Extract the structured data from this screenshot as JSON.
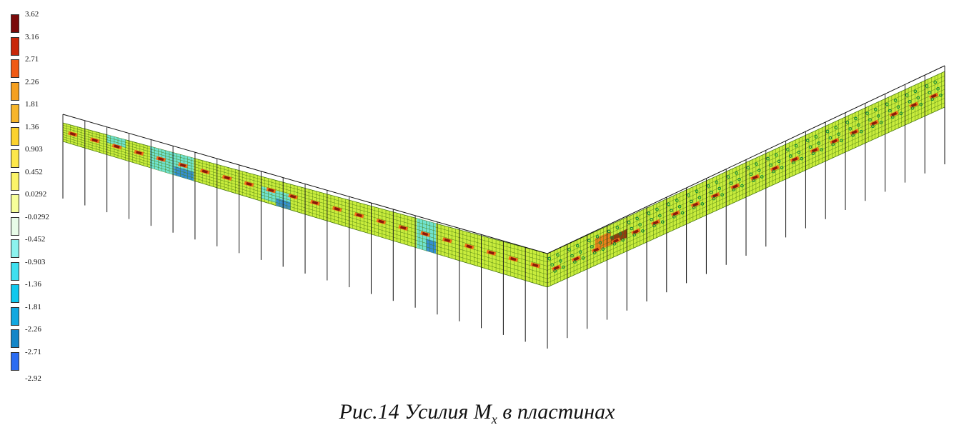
{
  "legend": {
    "levels": [
      {
        "label": "3.62",
        "color": "#7a0a0a"
      },
      {
        "label": "3.16",
        "color": "#c8280a"
      },
      {
        "label": "2.71",
        "color": "#f05a14"
      },
      {
        "label": "2.26",
        "color": "#f5a020"
      },
      {
        "label": "1.81",
        "color": "#f7b52a"
      },
      {
        "label": "1.36",
        "color": "#fcd22e"
      },
      {
        "label": "0.903",
        "color": "#fde74a"
      },
      {
        "label": "0.452",
        "color": "#fbf468"
      },
      {
        "label": "0.0292",
        "color": "#f7ff9a"
      },
      {
        "label": "-0.0292",
        "color": "#e8fbe8"
      },
      {
        "label": "-0.452",
        "color": "#8cf2ee"
      },
      {
        "label": "-0.903",
        "color": "#3ee0f0"
      },
      {
        "label": "-1.36",
        "color": "#10c8ee"
      },
      {
        "label": "-1.81",
        "color": "#12a8e0"
      },
      {
        "label": "-2.26",
        "color": "#1486c8"
      },
      {
        "label": "-2.71",
        "color": "#2a6cf2"
      }
    ],
    "last_label": "-2.92",
    "last_color": "#3a44ec"
  },
  "caption": {
    "prefix": "Рис.14 Усилия M",
    "subscript": "x",
    "suffix": " в пластинах"
  },
  "colors": {
    "mesh_fill": "#c8ec3c",
    "mesh_line": "#4a7a10",
    "stripe_dark": "#8a1a0a",
    "stripe_orange": "#f07018",
    "patch_cyan": "#60e0e8",
    "patch_blue": "#2a80d0",
    "dots_green": "#0a8a3a",
    "outline": "#111111"
  }
}
